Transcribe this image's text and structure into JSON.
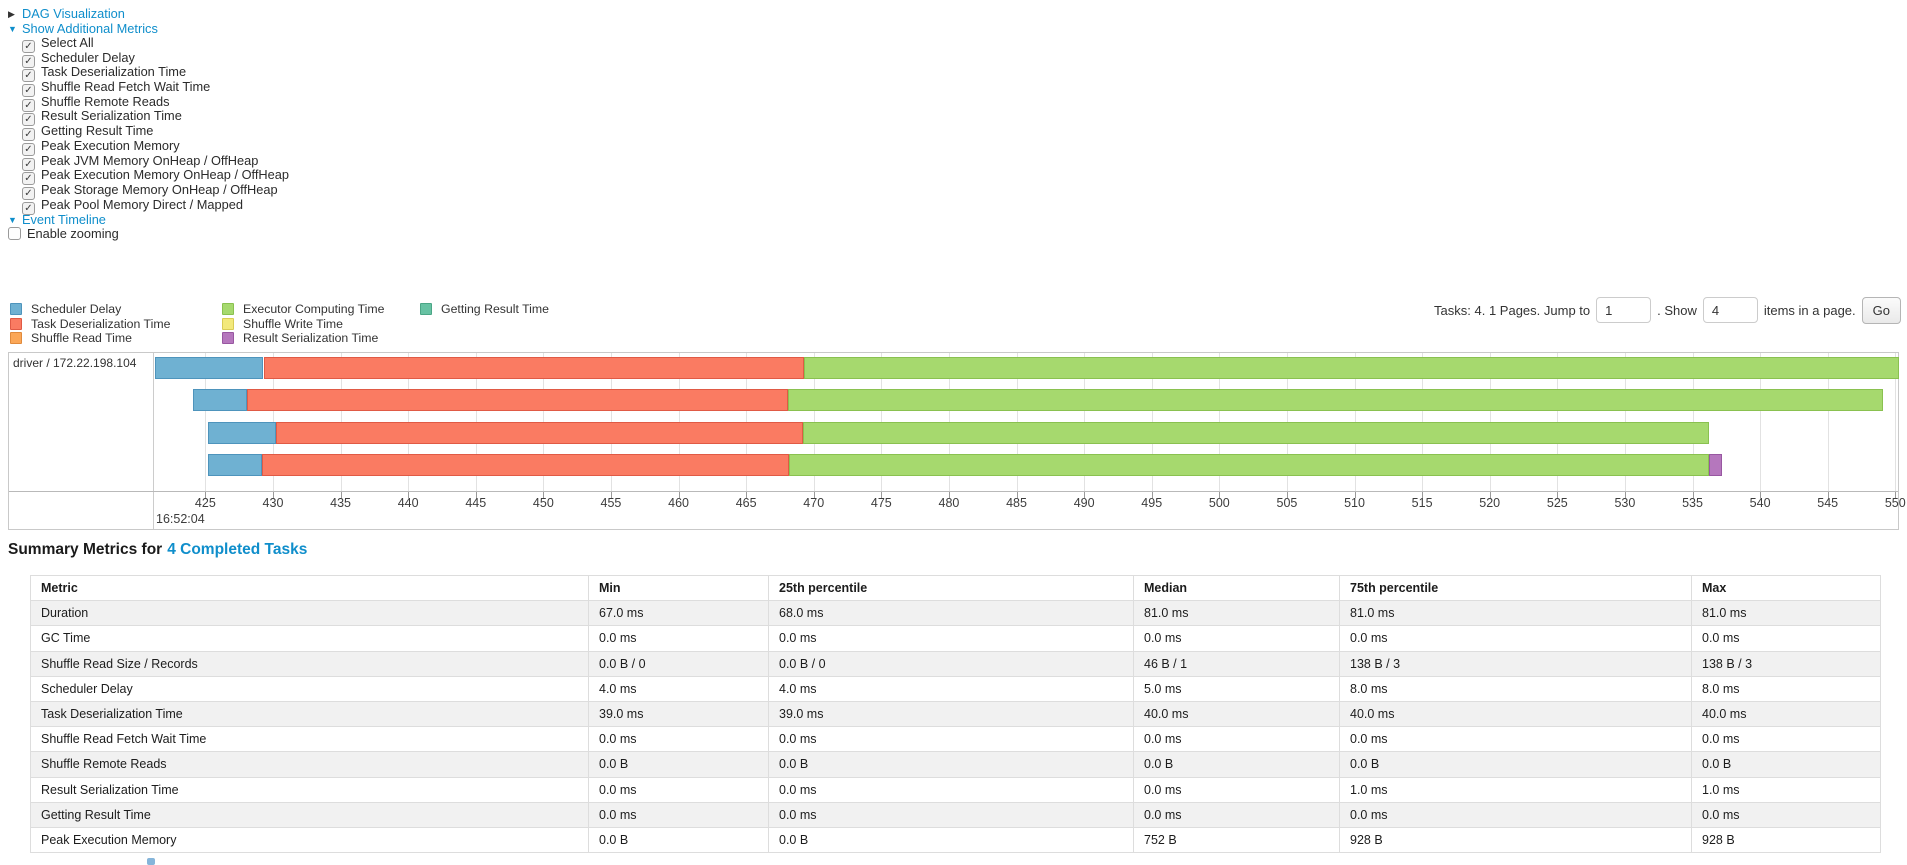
{
  "colors": {
    "link_blue": "#0f8ecb",
    "scheduler_delay": {
      "fill": "#6FB1D2",
      "border": "#4E94BC"
    },
    "task_deserialization": {
      "fill": "#FA7B62",
      "border": "#E05A45"
    },
    "shuffle_read": {
      "fill": "#FBA757",
      "border": "#E08A3C"
    },
    "executor_computing": {
      "fill": "#A6D96E",
      "border": "#8AC150"
    },
    "shuffle_write": {
      "fill": "#F3E97B",
      "border": "#D9CC55"
    },
    "getting_result": {
      "fill": "#67C2A3",
      "border": "#4BA686"
    },
    "result_serialization": {
      "fill": "#B577BD",
      "border": "#9857A1"
    }
  },
  "toggles": {
    "dag": "DAG Visualization",
    "additional_metrics": "Show Additional Metrics",
    "event_timeline": "Event Timeline",
    "enable_zooming": "Enable zooming"
  },
  "metric_checkboxes": [
    "Select All",
    "Scheduler Delay",
    "Task Deserialization Time",
    "Shuffle Read Fetch Wait Time",
    "Shuffle Remote Reads",
    "Result Serialization Time",
    "Getting Result Time",
    "Peak Execution Memory",
    "Peak JVM Memory OnHeap / OffHeap",
    "Peak Execution Memory OnHeap / OffHeap",
    "Peak Storage Memory OnHeap / OffHeap",
    "Peak Pool Memory Direct / Mapped"
  ],
  "legend_columns": [
    [
      {
        "label": "Scheduler Delay",
        "color": "scheduler_delay"
      },
      {
        "label": "Task Deserialization Time",
        "color": "task_deserialization"
      },
      {
        "label": "Shuffle Read Time",
        "color": "shuffle_read"
      }
    ],
    [
      {
        "label": "Executor Computing Time",
        "color": "executor_computing"
      },
      {
        "label": "Shuffle Write Time",
        "color": "shuffle_write"
      },
      {
        "label": "Result Serialization Time",
        "color": "result_serialization"
      }
    ],
    [
      {
        "label": "Getting Result Time",
        "color": "getting_result"
      }
    ]
  ],
  "pagination": {
    "tasks_text": "Tasks: 4. 1 Pages. Jump to",
    "jump_value": "1",
    "show_text": ". Show",
    "show_value": "4",
    "items_text": "items in a page.",
    "go_label": "Go"
  },
  "chart_data": {
    "type": "timeline",
    "executor_label": "driver / 172.22.198.104",
    "axis": {
      "domain_start": 421.2,
      "domain_end": 550.2,
      "tick_first": 425,
      "tick_last": 550,
      "tick_step": 5,
      "major_label": "16:52:04",
      "unit": "ms within second 16:52:04"
    },
    "bars": [
      {
        "start": 421.3,
        "segments": [
          [
            "scheduler_delay",
            8
          ],
          [
            "task_deserialization",
            40
          ],
          [
            "executor_computing",
            81
          ]
        ]
      },
      {
        "start": 424.1,
        "segments": [
          [
            "scheduler_delay",
            4
          ],
          [
            "task_deserialization",
            40
          ],
          [
            "executor_computing",
            81
          ]
        ]
      },
      {
        "start": 425.2,
        "segments": [
          [
            "scheduler_delay",
            5
          ],
          [
            "task_deserialization",
            39
          ],
          [
            "executor_computing",
            67
          ]
        ]
      },
      {
        "start": 425.2,
        "segments": [
          [
            "scheduler_delay",
            4
          ],
          [
            "task_deserialization",
            39
          ],
          [
            "executor_computing",
            68
          ],
          [
            "result_serialization",
            1
          ]
        ]
      }
    ]
  },
  "summary": {
    "title_prefix": "Summary Metrics for",
    "title_link": "4 Completed Tasks",
    "table": {
      "columns": [
        "Metric",
        "Min",
        "25th percentile",
        "Median",
        "75th percentile",
        "Max"
      ],
      "rows": [
        [
          "Duration",
          "67.0 ms",
          "68.0 ms",
          "81.0 ms",
          "81.0 ms",
          "81.0 ms"
        ],
        [
          "GC Time",
          "0.0 ms",
          "0.0 ms",
          "0.0 ms",
          "0.0 ms",
          "0.0 ms"
        ],
        [
          "Shuffle Read Size / Records",
          "0.0 B / 0",
          "0.0 B / 0",
          "46 B / 1",
          "138 B / 3",
          "138 B / 3"
        ],
        [
          "Scheduler Delay",
          "4.0 ms",
          "4.0 ms",
          "5.0 ms",
          "8.0 ms",
          "8.0 ms"
        ],
        [
          "Task Deserialization Time",
          "39.0 ms",
          "39.0 ms",
          "40.0 ms",
          "40.0 ms",
          "40.0 ms"
        ],
        [
          "Shuffle Read Fetch Wait Time",
          "0.0 ms",
          "0.0 ms",
          "0.0 ms",
          "0.0 ms",
          "0.0 ms"
        ],
        [
          "Shuffle Remote Reads",
          "0.0 B",
          "0.0 B",
          "0.0 B",
          "0.0 B",
          "0.0 B"
        ],
        [
          "Result Serialization Time",
          "0.0 ms",
          "0.0 ms",
          "0.0 ms",
          "1.0 ms",
          "1.0 ms"
        ],
        [
          "Getting Result Time",
          "0.0 ms",
          "0.0 ms",
          "0.0 ms",
          "0.0 ms",
          "0.0 ms"
        ],
        [
          "Peak Execution Memory",
          "0.0 B",
          "0.0 B",
          "752 B",
          "928 B",
          "928 B"
        ]
      ]
    }
  }
}
